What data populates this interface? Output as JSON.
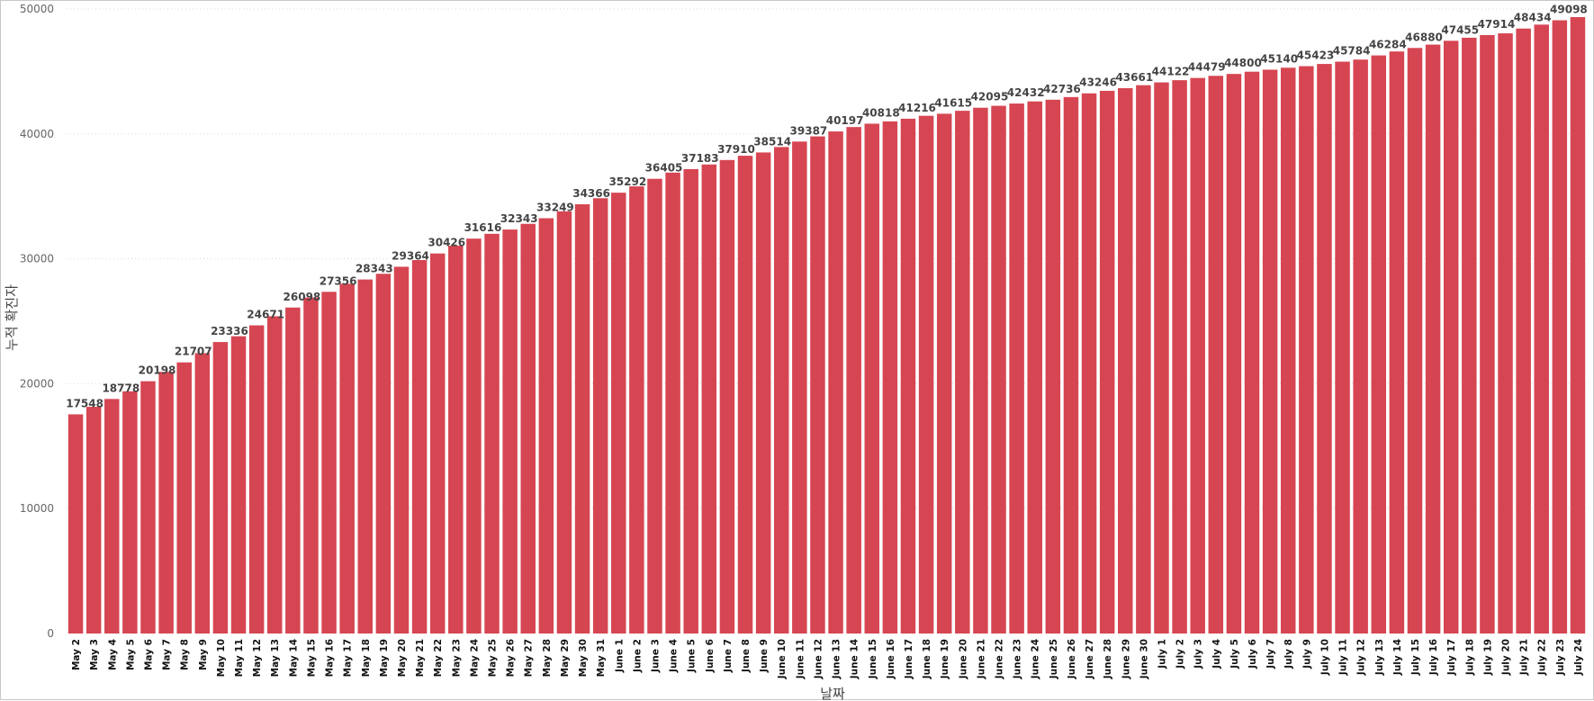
{
  "chart_data": {
    "type": "bar",
    "title": "",
    "xlabel": "날짜",
    "ylabel": "누적 확진자",
    "ylim": [
      0,
      50000
    ],
    "yticks": [
      0,
      10000,
      20000,
      30000,
      40000,
      50000
    ],
    "grid": true,
    "colors": {
      "bar": "#d64652"
    },
    "categories": [
      "May 2",
      "May 3",
      "May 4",
      "May 5",
      "May 6",
      "May 7",
      "May 8",
      "May 9",
      "May 10",
      "May 11",
      "May 12",
      "May 13",
      "May 14",
      "May 15",
      "May 16",
      "May 17",
      "May 18",
      "May 19",
      "May 20",
      "May 21",
      "May 22",
      "May 23",
      "May 24",
      "May 25",
      "May 26",
      "May 27",
      "May 28",
      "May 29",
      "May 30",
      "May 31",
      "June 1",
      "June 2",
      "June 3",
      "June 4",
      "June 5",
      "June 6",
      "June 7",
      "June 8",
      "June 9",
      "June 10",
      "June 11",
      "June 12",
      "June 13",
      "June 14",
      "June 15",
      "June 16",
      "June 17",
      "June 18",
      "June 19",
      "June 20",
      "June 21",
      "June 22",
      "June 23",
      "June 24",
      "June 25",
      "June 26",
      "June 27",
      "June 28",
      "June 29",
      "June 30",
      "July 1",
      "July 2",
      "July 3",
      "July 4",
      "July 5",
      "July 6",
      "July 7",
      "July 8",
      "July 9",
      "July 10",
      "July 11",
      "July 12",
      "July 13",
      "July 14",
      "July 15",
      "July 16",
      "July 17",
      "July 18",
      "July 19",
      "July 20",
      "July 21",
      "July 22",
      "July 23",
      "July 24"
    ],
    "values": [
      17548,
      18150,
      18778,
      19390,
      20198,
      20950,
      21707,
      22450,
      23336,
      23800,
      24671,
      25400,
      26098,
      26900,
      27356,
      28000,
      28343,
      28800,
      29364,
      29900,
      30426,
      31050,
      31616,
      32000,
      32343,
      32800,
      33249,
      33800,
      34366,
      34850,
      35292,
      35800,
      36405,
      36900,
      37183,
      37550,
      37910,
      38250,
      38514,
      38950,
      39387,
      39800,
      40197,
      40550,
      40818,
      41000,
      41216,
      41450,
      41615,
      41850,
      42095,
      42250,
      42432,
      42600,
      42736,
      42950,
      43246,
      43450,
      43661,
      43900,
      44122,
      44300,
      44479,
      44650,
      44800,
      44980,
      45140,
      45300,
      45423,
      45600,
      45784,
      45950,
      46284,
      46600,
      46880,
      47150,
      47455,
      47700,
      47914,
      48050,
      48434,
      48750,
      49098,
      49350
    ],
    "data_labels": [
      {
        "index": 0,
        "text": "17548"
      },
      {
        "index": 2,
        "text": "18778"
      },
      {
        "index": 4,
        "text": "20198"
      },
      {
        "index": 6,
        "text": "21707"
      },
      {
        "index": 8,
        "text": "23336"
      },
      {
        "index": 10,
        "text": "24671"
      },
      {
        "index": 12,
        "text": "26098"
      },
      {
        "index": 14,
        "text": "27356"
      },
      {
        "index": 16,
        "text": "28343"
      },
      {
        "index": 18,
        "text": "29364"
      },
      {
        "index": 20,
        "text": "30426"
      },
      {
        "index": 22,
        "text": "31616"
      },
      {
        "index": 24,
        "text": "32343"
      },
      {
        "index": 26,
        "text": "33249"
      },
      {
        "index": 28,
        "text": "34366"
      },
      {
        "index": 30,
        "text": "35292"
      },
      {
        "index": 32,
        "text": "36405"
      },
      {
        "index": 34,
        "text": "37183"
      },
      {
        "index": 36,
        "text": "37910"
      },
      {
        "index": 38,
        "text": "38514"
      },
      {
        "index": 40,
        "text": "39387"
      },
      {
        "index": 42,
        "text": "40197"
      },
      {
        "index": 44,
        "text": "40818"
      },
      {
        "index": 46,
        "text": "41216"
      },
      {
        "index": 48,
        "text": "41615"
      },
      {
        "index": 50,
        "text": "42095"
      },
      {
        "index": 52,
        "text": "42432"
      },
      {
        "index": 54,
        "text": "42736"
      },
      {
        "index": 56,
        "text": "43246"
      },
      {
        "index": 58,
        "text": "43661"
      },
      {
        "index": 60,
        "text": "44122"
      },
      {
        "index": 62,
        "text": "44479"
      },
      {
        "index": 64,
        "text": "44800"
      },
      {
        "index": 66,
        "text": "45140"
      },
      {
        "index": 68,
        "text": "45423"
      },
      {
        "index": 70,
        "text": "45784"
      },
      {
        "index": 72,
        "text": "46284"
      },
      {
        "index": 74,
        "text": "46880"
      },
      {
        "index": 76,
        "text": "47455"
      },
      {
        "index": 78,
        "text": "47914"
      },
      {
        "index": 80,
        "text": "48434"
      },
      {
        "index": 82,
        "text": "49098"
      }
    ]
  }
}
